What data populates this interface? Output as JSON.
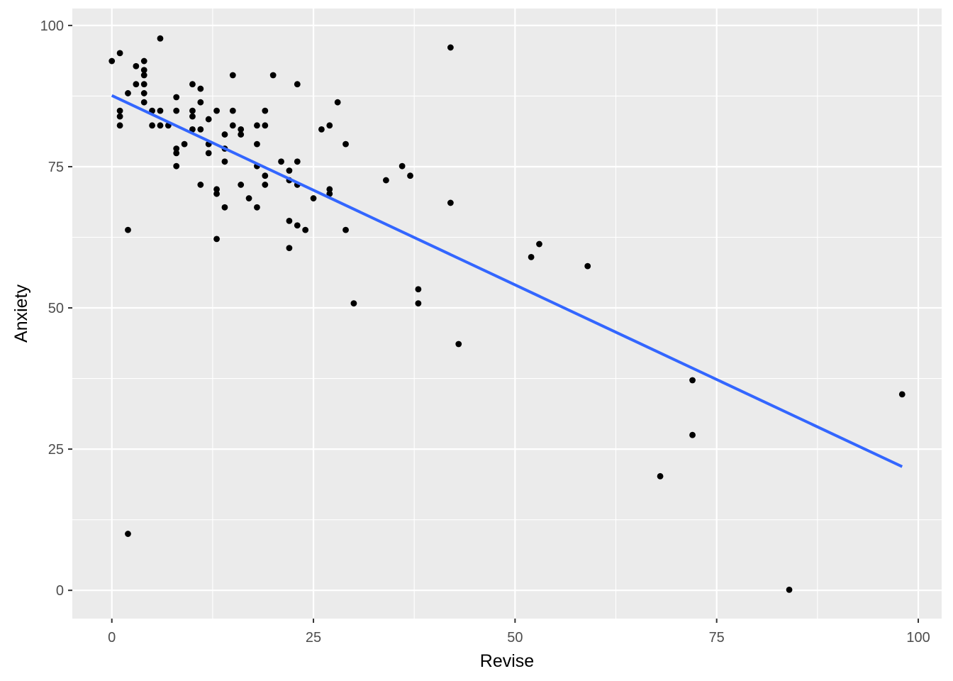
{
  "chart_data": {
    "type": "scatter",
    "title": "",
    "xlabel": "Revise",
    "ylabel": "Anxiety",
    "xlim": [
      -4.9,
      102.9
    ],
    "ylim": [
      -5.0,
      103.0
    ],
    "x_ticks": [
      0,
      25,
      50,
      75,
      100
    ],
    "y_ticks": [
      0,
      25,
      50,
      75,
      100
    ],
    "x_tick_labels": [
      "0",
      "25",
      "50",
      "75",
      "100"
    ],
    "y_tick_labels": [
      "0",
      "25",
      "50",
      "75",
      "100"
    ],
    "grid": true,
    "background": "#ebebeb",
    "grid_color": "#ffffff",
    "point_color": "#000000",
    "line_color": "#3366ff",
    "trend_line": {
      "x": [
        0,
        98
      ],
      "y": [
        87.6,
        21.9
      ]
    },
    "series": [
      {
        "points": [
          [
            0,
            93.7
          ],
          [
            1,
            95.1
          ],
          [
            1,
            84.9
          ],
          [
            1,
            83.9
          ],
          [
            1,
            82.3
          ],
          [
            2,
            88.0
          ],
          [
            2,
            63.8
          ],
          [
            2,
            10.0
          ],
          [
            3,
            92.8
          ],
          [
            3,
            89.6
          ],
          [
            4,
            93.7
          ],
          [
            4,
            92.1
          ],
          [
            4,
            91.2
          ],
          [
            4,
            89.6
          ],
          [
            4,
            88.0
          ],
          [
            4,
            86.4
          ],
          [
            5,
            84.9
          ],
          [
            5,
            82.3
          ],
          [
            6,
            97.7
          ],
          [
            6,
            84.9
          ],
          [
            6,
            82.3
          ],
          [
            7,
            82.3
          ],
          [
            8,
            87.3
          ],
          [
            8,
            84.9
          ],
          [
            8,
            78.2
          ],
          [
            8,
            77.4
          ],
          [
            8,
            75.1
          ],
          [
            9,
            79.0
          ],
          [
            10,
            89.6
          ],
          [
            10,
            84.9
          ],
          [
            10,
            83.9
          ],
          [
            10,
            81.6
          ],
          [
            11,
            88.8
          ],
          [
            11,
            86.4
          ],
          [
            11,
            81.6
          ],
          [
            11,
            71.8
          ],
          [
            12,
            83.4
          ],
          [
            12,
            79.0
          ],
          [
            12,
            77.4
          ],
          [
            13,
            84.9
          ],
          [
            13,
            71.0
          ],
          [
            13,
            70.2
          ],
          [
            13,
            62.2
          ],
          [
            14,
            80.7
          ],
          [
            14,
            78.2
          ],
          [
            14,
            75.9
          ],
          [
            14,
            67.8
          ],
          [
            15,
            91.2
          ],
          [
            15,
            84.9
          ],
          [
            15,
            82.3
          ],
          [
            16,
            81.6
          ],
          [
            16,
            80.7
          ],
          [
            16,
            71.8
          ],
          [
            17,
            69.4
          ],
          [
            18,
            82.3
          ],
          [
            18,
            79.0
          ],
          [
            18,
            75.1
          ],
          [
            18,
            67.8
          ],
          [
            19,
            84.9
          ],
          [
            19,
            82.3
          ],
          [
            19,
            73.4
          ],
          [
            19,
            71.8
          ],
          [
            20,
            91.2
          ],
          [
            21,
            75.9
          ],
          [
            22,
            74.3
          ],
          [
            22,
            72.6
          ],
          [
            22,
            65.4
          ],
          [
            22,
            60.6
          ],
          [
            23,
            89.6
          ],
          [
            23,
            75.9
          ],
          [
            23,
            71.8
          ],
          [
            23,
            64.6
          ],
          [
            24,
            63.8
          ],
          [
            25,
            69.4
          ],
          [
            26,
            81.6
          ],
          [
            27,
            82.3
          ],
          [
            27,
            71.0
          ],
          [
            27,
            70.2
          ],
          [
            28,
            86.4
          ],
          [
            29,
            79.0
          ],
          [
            29,
            63.8
          ],
          [
            30,
            50.8
          ],
          [
            34,
            72.6
          ],
          [
            36,
            75.1
          ],
          [
            37,
            73.4
          ],
          [
            38,
            53.3
          ],
          [
            38,
            50.8
          ],
          [
            42,
            96.1
          ],
          [
            42,
            68.6
          ],
          [
            43,
            43.6
          ],
          [
            52,
            59.0
          ],
          [
            53,
            61.3
          ],
          [
            59,
            57.4
          ],
          [
            68,
            20.2
          ],
          [
            72,
            37.2
          ],
          [
            72,
            27.5
          ],
          [
            84,
            0.1
          ],
          [
            98,
            34.7
          ]
        ]
      }
    ]
  }
}
